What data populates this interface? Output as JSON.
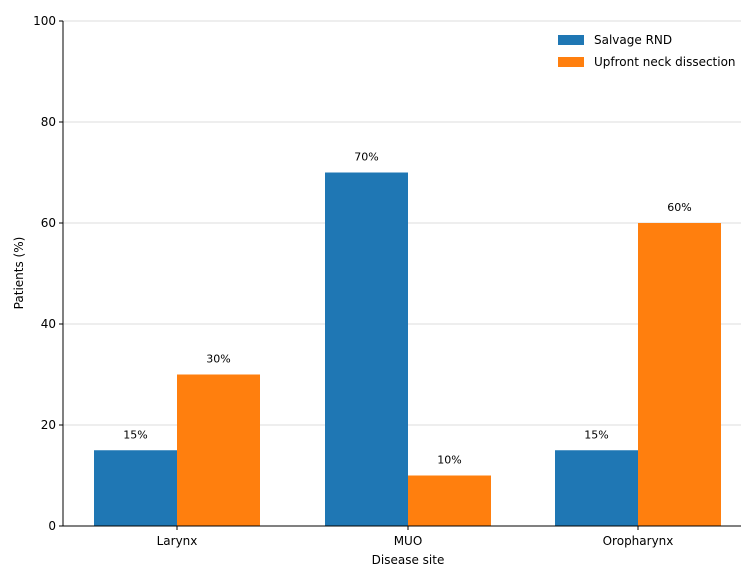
{
  "chart_data": {
    "type": "bar",
    "categories": [
      "Larynx",
      "MUO",
      "Oropharynx"
    ],
    "series": [
      {
        "name": "Salvage RND",
        "values": [
          15,
          70,
          15
        ],
        "color": "#1f77b4"
      },
      {
        "name": "Upfront neck dissection",
        "values": [
          30,
          10,
          60
        ],
        "color": "#ff7f0e"
      }
    ],
    "data_labels": [
      [
        "15%",
        "70%",
        "15%"
      ],
      [
        "30%",
        "10%",
        "60%"
      ]
    ],
    "xlabel": "Disease site",
    "ylabel": "Patients (%)",
    "ylim": [
      0,
      100
    ],
    "yticks": [
      0,
      20,
      40,
      60,
      80,
      100
    ],
    "grid": "horizontal",
    "legend_position": "top-right"
  }
}
